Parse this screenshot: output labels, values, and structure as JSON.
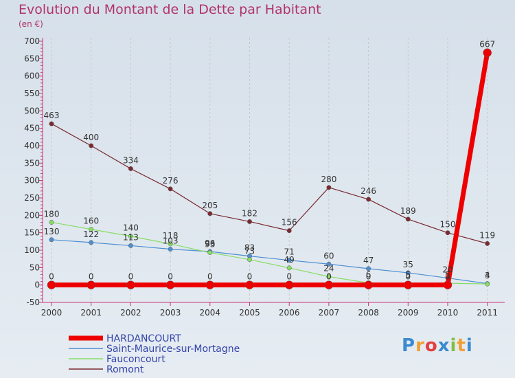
{
  "title": "Evolution du Montant de la Dette par Habitant",
  "subtitle": "(en €)",
  "logo": "Proxiti",
  "colors": {
    "hardancourt": "#ee0000",
    "saint_maurice": "#4f8fd0",
    "fauconcourt": "#88dd66",
    "romont": "#7a2a30"
  },
  "chart_data": {
    "type": "line",
    "categories": [
      "2000",
      "2001",
      "2002",
      "2003",
      "2004",
      "2005",
      "2006",
      "2007",
      "2008",
      "2009",
      "2010",
      "2011"
    ],
    "ylim": [
      -50,
      700
    ],
    "yticks": [
      -50,
      0,
      50,
      100,
      150,
      200,
      250,
      300,
      350,
      400,
      450,
      500,
      550,
      600,
      650,
      700
    ],
    "grid": "vertical-dashed",
    "legend": "bottom-left",
    "series": [
      {
        "name": "HARDANCOURT",
        "key": "hardancourt",
        "values": [
          0,
          0,
          0,
          0,
          0,
          0,
          0,
          0,
          0,
          0,
          0,
          667
        ],
        "labels": [
          "0",
          "0",
          "0",
          "0",
          "0",
          "0",
          "0",
          "0",
          "0",
          "0",
          "0",
          "667"
        ]
      },
      {
        "name": "Saint-Maurice-sur-Mortagne",
        "key": "saint_maurice",
        "values": [
          130,
          122,
          113,
          103,
          96,
          83,
          71,
          60,
          47,
          35,
          20,
          4
        ],
        "labels": [
          "130",
          "122",
          "113",
          "103",
          "96",
          "83",
          "71",
          "60",
          "47",
          "35",
          "20",
          "4"
        ]
      },
      {
        "name": "Fauconcourt",
        "key": "fauconcourt",
        "values": [
          180,
          160,
          140,
          118,
          93,
          73,
          49,
          24,
          6,
          5,
          5,
          3
        ],
        "labels": [
          "180",
          "160",
          "140",
          "118",
          "93",
          "73",
          "49",
          "24",
          "6",
          "5",
          "5",
          "3"
        ]
      },
      {
        "name": "Romont",
        "key": "romont",
        "values": [
          463,
          400,
          334,
          276,
          205,
          182,
          156,
          280,
          246,
          189,
          150,
          119
        ],
        "labels": [
          "463",
          "400",
          "334",
          "276",
          "205",
          "182",
          "156",
          "280",
          "246",
          "189",
          "150",
          "119"
        ]
      }
    ]
  }
}
